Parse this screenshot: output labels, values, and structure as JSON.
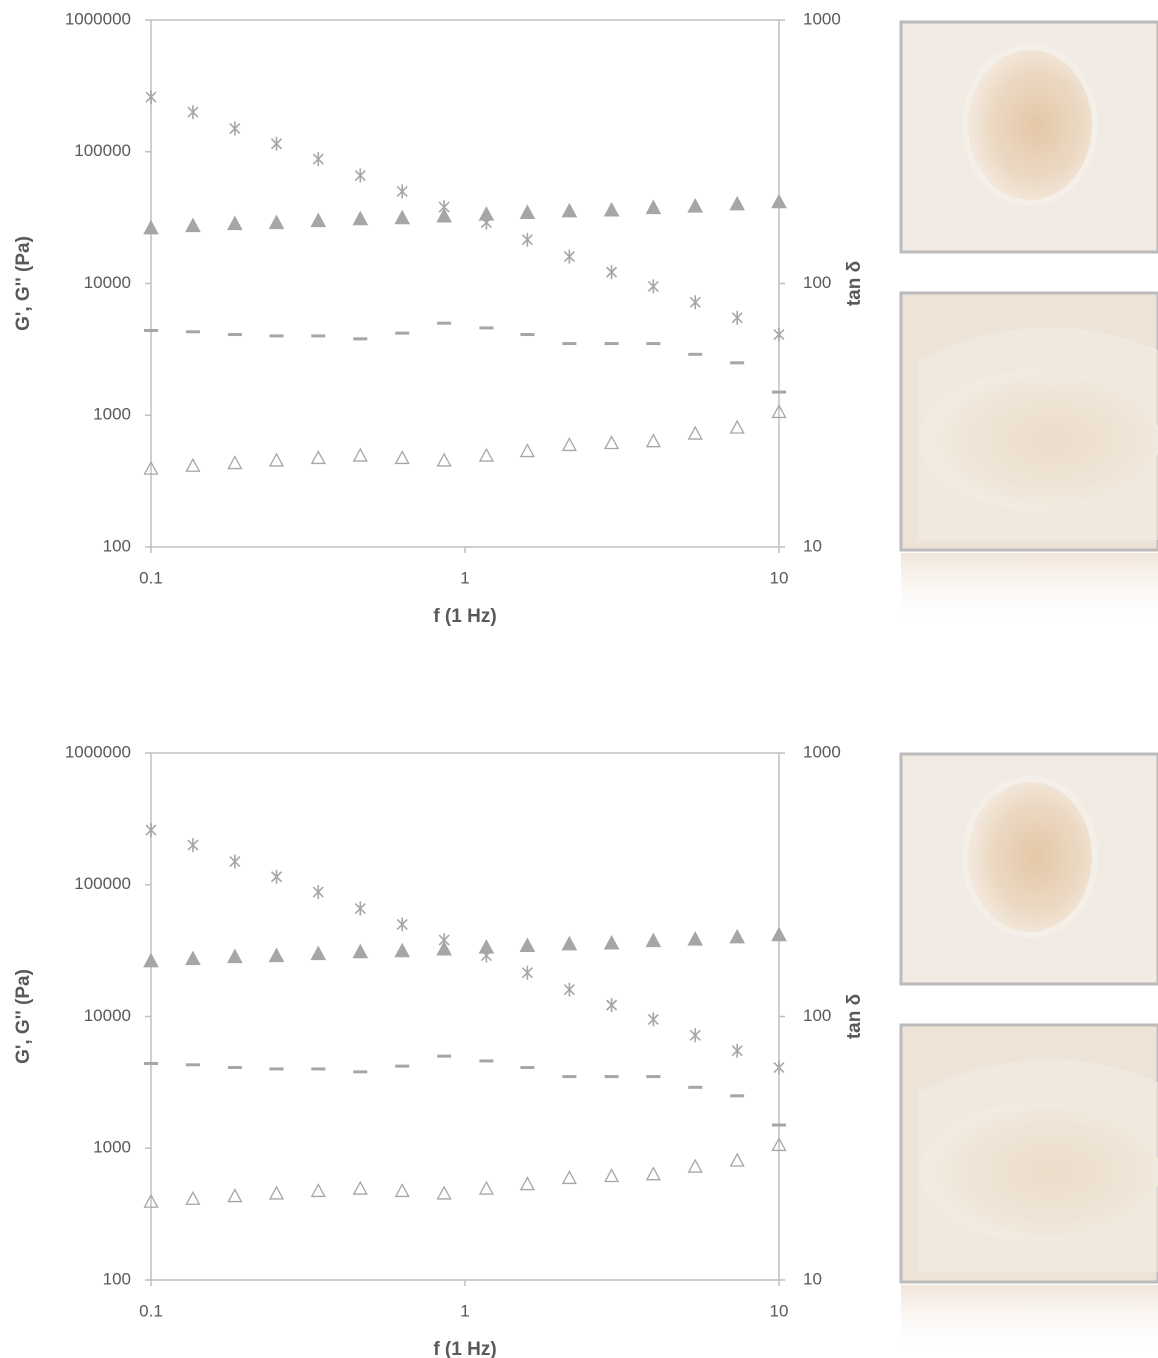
{
  "chart_data": [
    {
      "type": "scatter",
      "x_label": "f (1 Hz)",
      "y_label": "G', G'' (Pa)",
      "y2_label": "tan δ",
      "xlog": true,
      "ylog": true,
      "y2log": true,
      "xlim": [
        0.1,
        10
      ],
      "xticks": [
        0.1,
        1,
        10
      ],
      "ylim": [
        100,
        1000000
      ],
      "yticks": [
        100,
        1000,
        10000,
        100000,
        1000000
      ],
      "y2lim": [
        10,
        1000
      ],
      "y2ticks": [
        10,
        100,
        1000
      ],
      "x": [
        0.1,
        0.136,
        0.185,
        0.251,
        0.341,
        0.464,
        0.631,
        0.858,
        1.17,
        1.58,
        2.15,
        2.93,
        3.98,
        5.41,
        7.36,
        10
      ],
      "series": [
        {
          "marker": "filled-triangle",
          "color": "#a6a6a6",
          "values": [
            26000,
            27000,
            28000,
            28500,
            29500,
            30500,
            31000,
            32000,
            33000,
            34000,
            35000,
            35500,
            37000,
            38000,
            39500,
            41000
          ]
        },
        {
          "marker": "open-triangle",
          "color": "#a6a6a6",
          "values": [
            390,
            410,
            430,
            450,
            470,
            490,
            470,
            450,
            490,
            530,
            590,
            610,
            630,
            720,
            800,
            1050
          ]
        },
        {
          "marker": "asterisk",
          "color": "#a6a6a6",
          "values": [
            260000,
            200000,
            150000,
            115000,
            88000,
            66000,
            50000,
            38000,
            29000,
            21500,
            16000,
            12200,
            9500,
            7200,
            5500,
            4100
          ]
        },
        {
          "marker": "dash",
          "color": "#a6a6a6",
          "values": [
            4400,
            4300,
            4100,
            4000,
            4000,
            3800,
            4200,
            5000,
            4600,
            4100,
            3500,
            3500,
            3500,
            2900,
            2500,
            1500
          ]
        }
      ]
    },
    {
      "type": "scatter",
      "x_label": "f (1 Hz)",
      "y_label": "G', G'' (Pa)",
      "y2_label": "tan δ",
      "xlog": true,
      "ylog": true,
      "y2log": true,
      "xlim": [
        0.1,
        10
      ],
      "xticks": [
        0.1,
        1,
        10
      ],
      "ylim": [
        100,
        1000000
      ],
      "yticks": [
        100,
        1000,
        10000,
        100000,
        1000000
      ],
      "y2lim": [
        10,
        1000
      ],
      "y2ticks": [
        10,
        100,
        1000
      ],
      "x": [
        0.1,
        0.136,
        0.185,
        0.251,
        0.341,
        0.464,
        0.631,
        0.858,
        1.17,
        1.58,
        2.15,
        2.93,
        3.98,
        5.41,
        7.36,
        10
      ],
      "series": [
        {
          "marker": "filled-triangle",
          "color": "#a6a6a6",
          "values": [
            26000,
            27000,
            28000,
            28500,
            29500,
            30500,
            31000,
            32000,
            33000,
            34000,
            35000,
            35500,
            37000,
            38000,
            39500,
            41000
          ]
        },
        {
          "marker": "open-triangle",
          "color": "#a6a6a6",
          "values": [
            390,
            410,
            430,
            450,
            470,
            490,
            470,
            450,
            490,
            530,
            590,
            610,
            630,
            720,
            800,
            1050
          ]
        },
        {
          "marker": "asterisk",
          "color": "#a6a6a6",
          "values": [
            260000,
            200000,
            150000,
            115000,
            88000,
            66000,
            50000,
            38000,
            29000,
            21500,
            16000,
            12200,
            9500,
            7200,
            5500,
            4100
          ]
        },
        {
          "marker": "dash",
          "color": "#a6a6a6",
          "values": [
            4400,
            4300,
            4100,
            4000,
            4000,
            3800,
            4200,
            5000,
            4600,
            4100,
            3500,
            3500,
            3500,
            2900,
            2500,
            1500
          ]
        }
      ]
    }
  ]
}
